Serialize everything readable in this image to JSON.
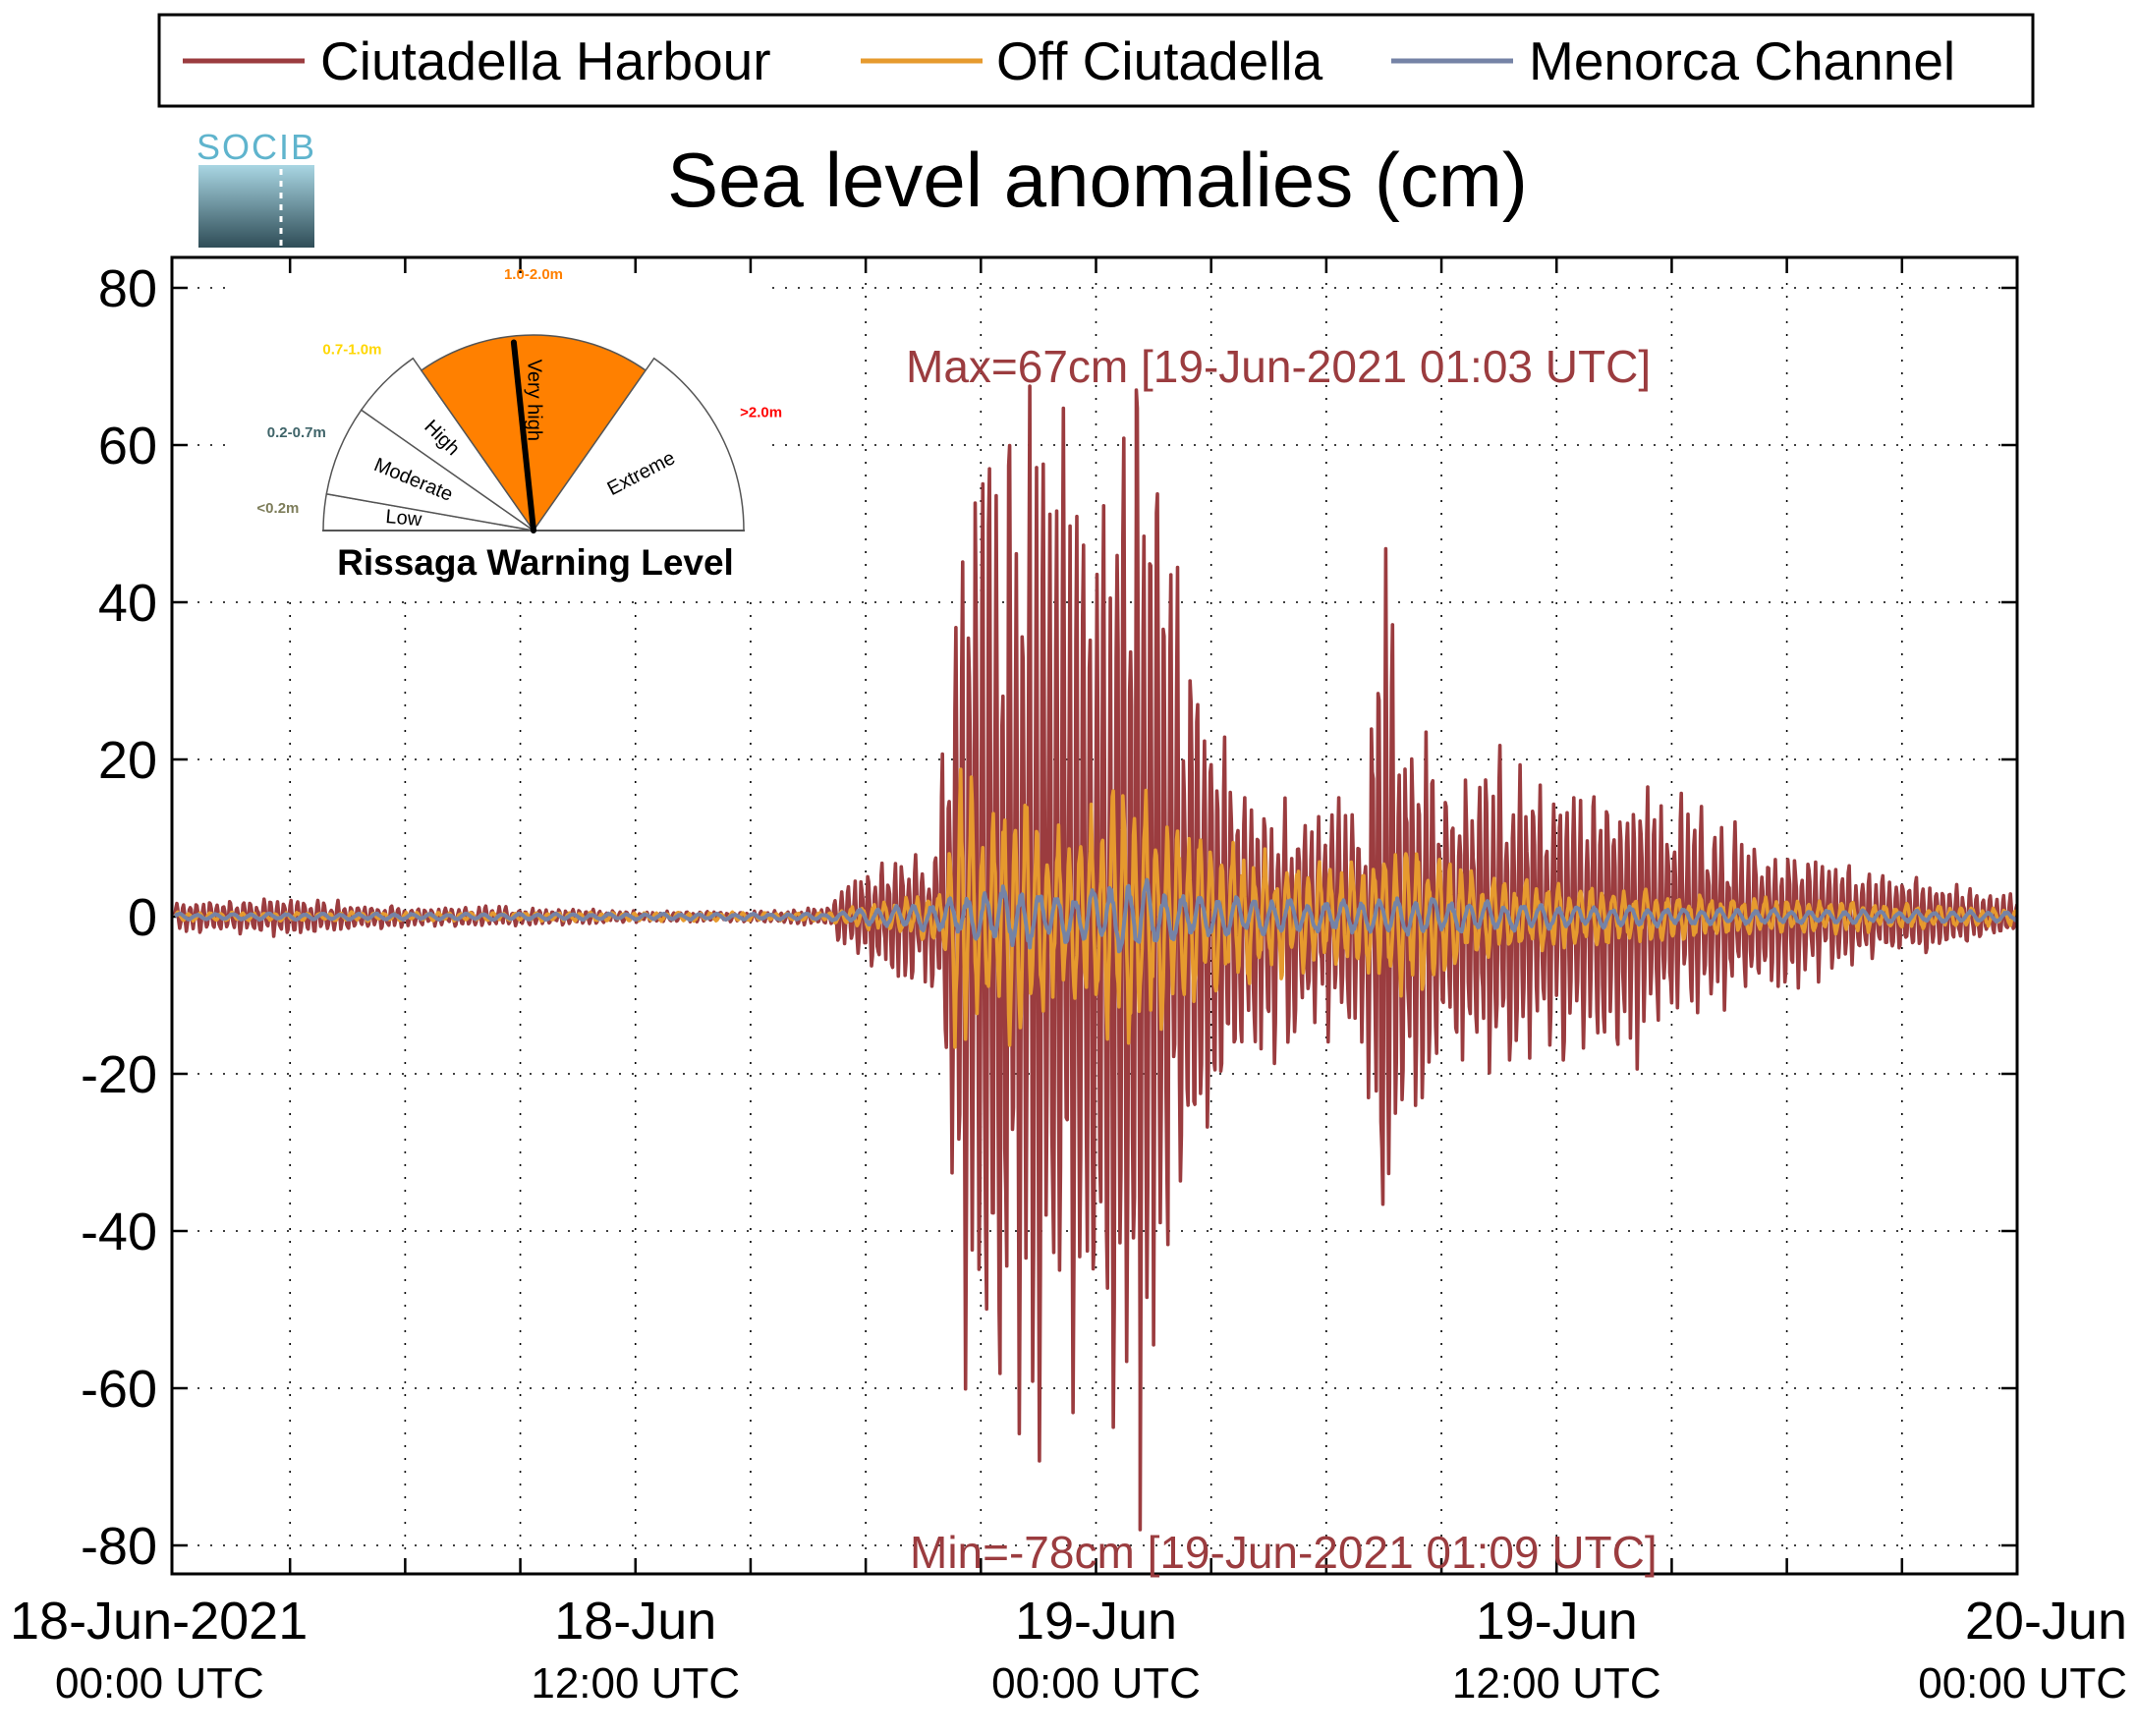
{
  "colors": {
    "harbour": "#9b3c3f",
    "off": "#e69a2e",
    "channel": "#7583a6",
    "warning_fill": "#ff8000",
    "logo_text": "#5fb4cd",
    "logo_top": "#a9d6e3",
    "logo_bottom": "#2f4d57"
  },
  "logo": {
    "text": "SOCIB"
  },
  "chart_data": {
    "type": "line",
    "title": "Sea level anomalies (cm)",
    "xlabel": "",
    "ylabel": "",
    "ylim": [
      -80,
      80
    ],
    "xlim_hours": [
      0,
      48
    ],
    "grid": true,
    "legend_position": "top",
    "yticks": [
      80,
      60,
      40,
      20,
      0,
      -20,
      -40,
      -60,
      -80
    ],
    "xticks": [
      {
        "date": "18-Jun-2021",
        "time": "00:00 UTC",
        "hour": 0
      },
      {
        "date": "18-Jun",
        "time": "12:00 UTC",
        "hour": 12
      },
      {
        "date": "19-Jun",
        "time": "00:00 UTC",
        "hour": 24
      },
      {
        "date": "19-Jun",
        "time": "12:00 UTC",
        "hour": 36
      },
      {
        "date": "20-Jun",
        "time": "00:00 UTC",
        "hour": 48
      }
    ],
    "series": [
      {
        "name": "Ciutadella Harbour",
        "color": "#9b3c3f",
        "envelope_hours": [
          0,
          3,
          6,
          9,
          12,
          15,
          17,
          18,
          19.8,
          20.5,
          21,
          22,
          23,
          24,
          25,
          26,
          27,
          28,
          30,
          31,
          31.5,
          32,
          33,
          34,
          36,
          38,
          40,
          43,
          48
        ],
        "envelope_cm": [
          1.5,
          2.0,
          1.0,
          1.0,
          0.6,
          0.5,
          1.0,
          6.0,
          8.0,
          42.0,
          54.0,
          55.0,
          50.0,
          44.0,
          62.0,
          40.0,
          22.0,
          15.0,
          12.0,
          14.0,
          45.0,
          22.0,
          15.0,
          18.0,
          14.0,
          15.0,
          10.0,
          6.0,
          2.0
        ]
      },
      {
        "name": "Off Ciutadella",
        "color": "#e69a2e",
        "envelope_hours": [
          0,
          17,
          18,
          20,
          20.5,
          21,
          22,
          23,
          24,
          25,
          26,
          27,
          28,
          30,
          31,
          32,
          34,
          36,
          40,
          48
        ],
        "envelope_cm": [
          0.5,
          0.5,
          1.5,
          3.0,
          20.0,
          10.0,
          16.0,
          10.0,
          13.0,
          17.0,
          12.0,
          10.0,
          8.0,
          6.0,
          7.0,
          10.0,
          5.0,
          4.0,
          2.5,
          1.0
        ]
      },
      {
        "name": "Menorca Channel",
        "color": "#7583a6",
        "envelope_hours": [
          0,
          17,
          18,
          20,
          21,
          22,
          23,
          24,
          25,
          26,
          28,
          30,
          32,
          34,
          36,
          40,
          48
        ],
        "envelope_cm": [
          0.4,
          0.4,
          1.0,
          2.0,
          3.5,
          4.0,
          3.0,
          4.0,
          5.0,
          3.0,
          2.5,
          2.0,
          2.5,
          2.0,
          1.5,
          1.0,
          0.6
        ]
      }
    ],
    "max_label": "Max=67cm [19-Jun-2021 01:03 UTC]",
    "min_label": "Min=-78cm [19-Jun-2021 01:09 UTC]",
    "max_value": 67,
    "min_value": -78
  },
  "gauge": {
    "title": "Rissaga Warning Level",
    "needle_level": "Very high",
    "sectors": [
      {
        "label": "Low",
        "range": "<0.2m",
        "range_color": "#7d7d5a",
        "active": false
      },
      {
        "label": "Moderate",
        "range": "0.2-0.7m",
        "range_color": "#3f6469",
        "active": false
      },
      {
        "label": "High",
        "range": "0.7-1.0m",
        "range_color": "#ffd700",
        "active": false
      },
      {
        "label": "Very high",
        "range": "1.0-2.0m",
        "range_color": "#ff8000",
        "active": true
      },
      {
        "label": "Extreme",
        "range": ">2.0m",
        "range_color": "#ff0000",
        "active": false
      }
    ]
  }
}
